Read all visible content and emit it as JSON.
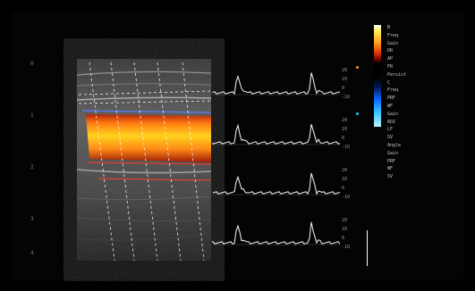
{
  "screen": {
    "background": "#000000",
    "depth_scale_labels": [
      "0",
      "1",
      "2",
      "3",
      "4"
    ],
    "velocity_scale_labels": [
      "20",
      "10",
      "0",
      "-10"
    ]
  },
  "colors": {
    "flow_red": "#d8320a",
    "flow_yellow": "#ffd21e",
    "trace": "#e6e6e6",
    "scan_lines": "#ffffff"
  },
  "parameters": {
    "rows": [
      {
        "k": "B",
        "v": ""
      },
      {
        "k": "Freq",
        "v": ""
      },
      {
        "k": "Gain",
        "v": ""
      },
      {
        "k": "DR",
        "v": ""
      },
      {
        "k": "AP",
        "v": ""
      },
      {
        "k": "FR",
        "v": ""
      },
      {
        "k": "Persist",
        "v": ""
      },
      {
        "k": "C",
        "v": ""
      },
      {
        "k": "Freq",
        "v": ""
      },
      {
        "k": "PRF",
        "v": ""
      },
      {
        "k": "WF",
        "v": ""
      },
      {
        "k": "Gain",
        "v": ""
      },
      {
        "k": "ROI",
        "v": ""
      },
      {
        "k": "LF",
        "v": ""
      },
      {
        "k": "SV",
        "v": ""
      },
      {
        "k": "Angle",
        "v": ""
      },
      {
        "k": "Gain",
        "v": ""
      },
      {
        "k": "PRF",
        "v": ""
      },
      {
        "k": "WF",
        "v": ""
      },
      {
        "k": "SV",
        "v": ""
      },
      {
        "k": "",
        "v": ""
      },
      {
        "k": "",
        "v": ""
      }
    ]
  },
  "traces": {
    "count": 4,
    "peaks_per_trace": 2
  }
}
